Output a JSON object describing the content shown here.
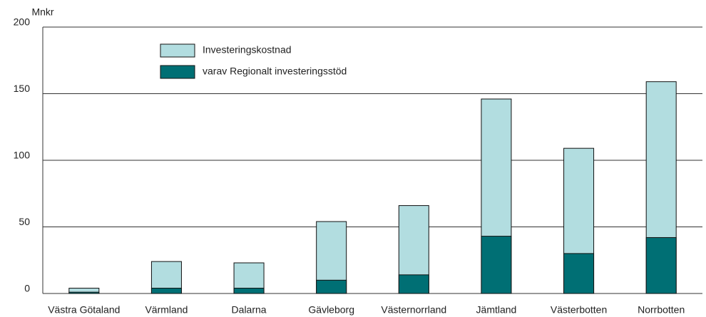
{
  "chart_data": {
    "type": "bar",
    "y_label": "Mnkr",
    "categories": [
      "Västra Götaland",
      "Värmland",
      "Dalarna",
      "Gävleborg",
      "Västernorrland",
      "Jämtland",
      "Västerbotten",
      "Norrbotten"
    ],
    "series": [
      {
        "name": "Investeringskostnad",
        "color": "#b2dde0",
        "values": [
          4,
          24,
          23,
          54,
          66,
          146,
          109,
          159
        ]
      },
      {
        "name": "varav Regionalt investeringsstöd",
        "color": "#006f74",
        "values": [
          1,
          4,
          4,
          10,
          14,
          43,
          30,
          42
        ]
      }
    ],
    "ylim": [
      0,
      200
    ],
    "yticks": [
      0,
      50,
      100,
      150,
      200
    ],
    "grid": true
  }
}
